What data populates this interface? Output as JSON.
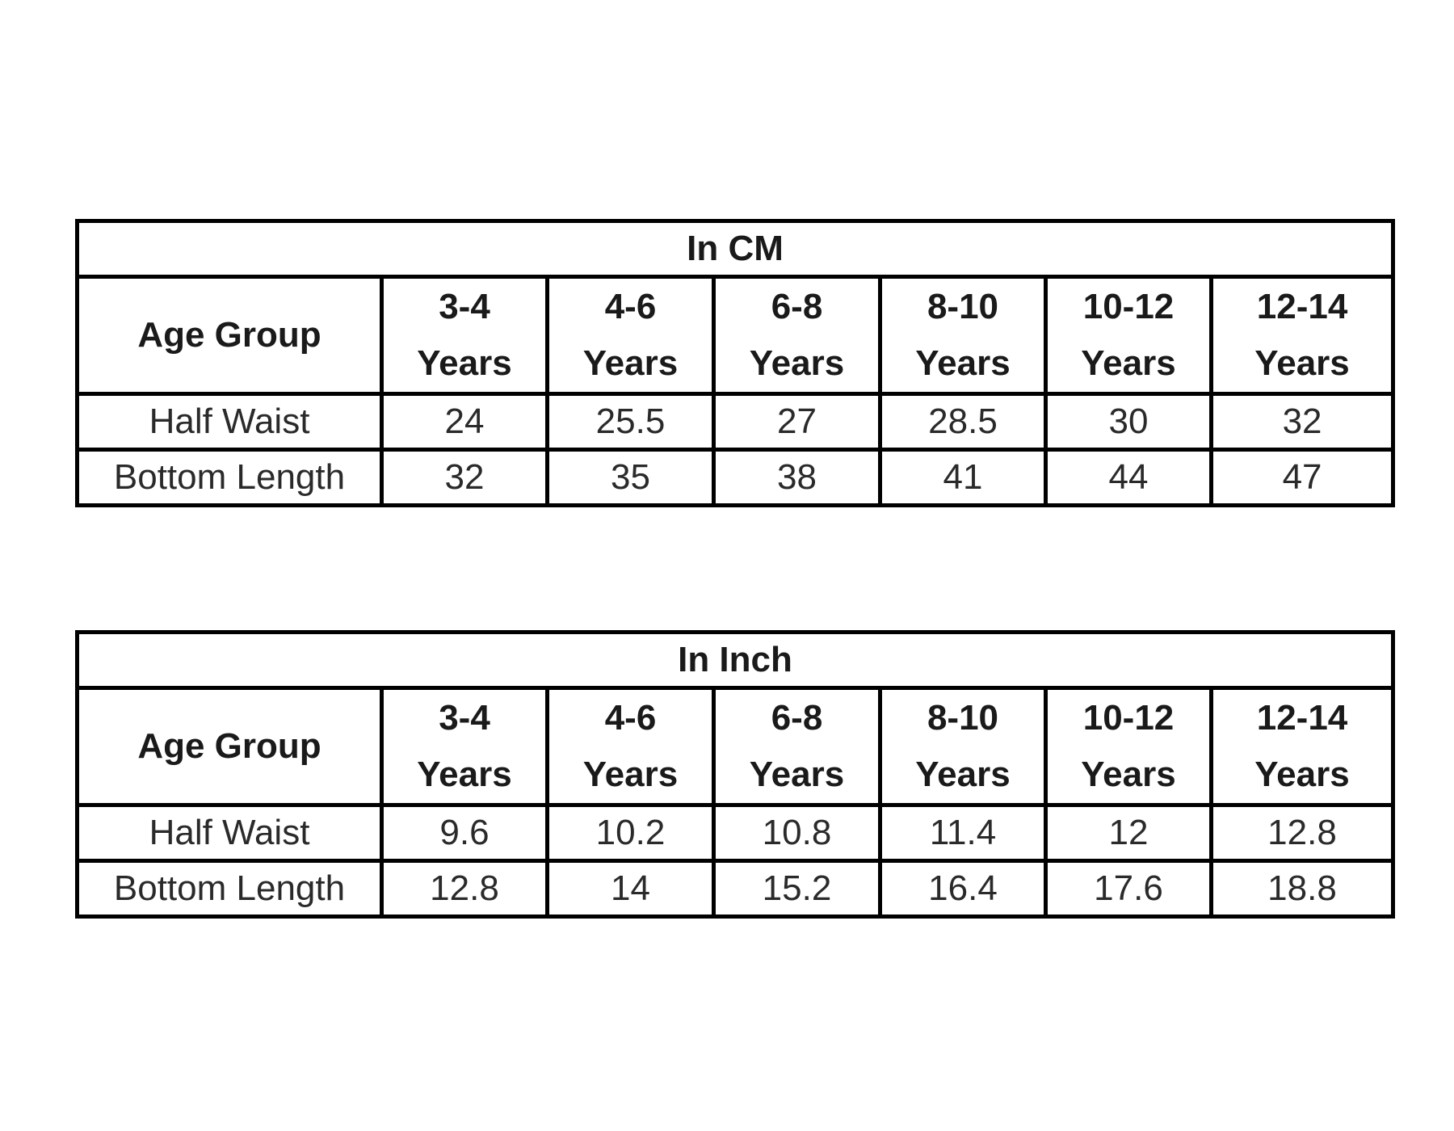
{
  "tables": [
    {
      "title": "In CM",
      "corner": "Age Group",
      "columns": [
        [
          "3-4",
          "Years"
        ],
        [
          "4-6",
          "Years"
        ],
        [
          "6-8",
          "Years"
        ],
        [
          "8-10",
          "Years"
        ],
        [
          "10-12",
          "Years"
        ],
        [
          "12-14",
          "Years"
        ]
      ],
      "rows": [
        {
          "label": "Half Waist",
          "cells": [
            "24",
            "25.5",
            "27",
            "28.5",
            "30",
            "32"
          ]
        },
        {
          "label": "Bottom Length",
          "cells": [
            "32",
            "35",
            "38",
            "41",
            "44",
            "47"
          ]
        }
      ]
    },
    {
      "title": "In Inch",
      "corner": "Age Group",
      "columns": [
        [
          "3-4",
          "Years"
        ],
        [
          "4-6",
          "Years"
        ],
        [
          "6-8",
          "Years"
        ],
        [
          "8-10",
          "Years"
        ],
        [
          "10-12",
          "Years"
        ],
        [
          "12-14",
          "Years"
        ]
      ],
      "rows": [
        {
          "label": "Half Waist",
          "cells": [
            "9.6",
            "10.2",
            "10.8",
            "11.4",
            "12",
            "12.8"
          ]
        },
        {
          "label": "Bottom Length",
          "cells": [
            "12.8",
            "14",
            "15.2",
            "16.4",
            "17.6",
            "18.8"
          ]
        }
      ]
    }
  ]
}
